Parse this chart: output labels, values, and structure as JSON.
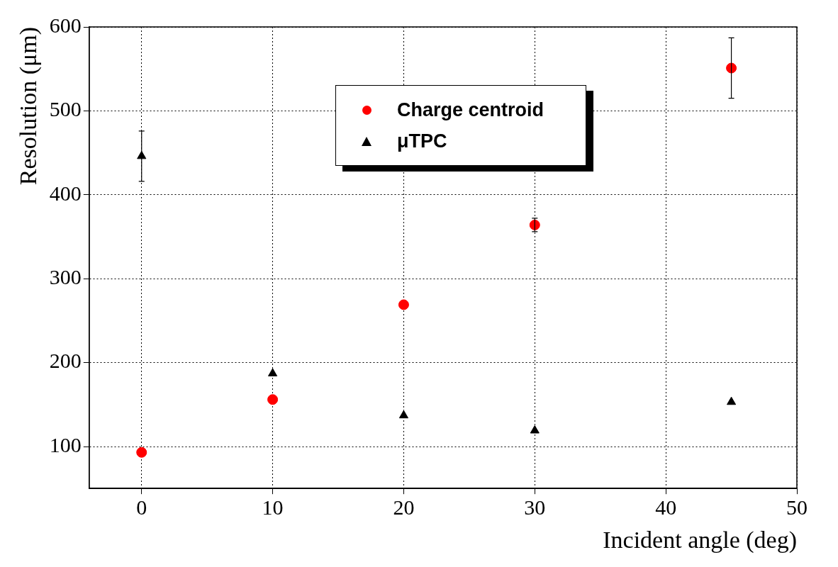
{
  "chart_data": {
    "type": "scatter",
    "xlabel": "Incident angle (deg)",
    "ylabel": "Resolution (μm)",
    "xlim": [
      -4,
      50
    ],
    "xticks": [
      0,
      10,
      20,
      30,
      40,
      50
    ],
    "ylim": [
      50,
      600
    ],
    "yticks": [
      100,
      200,
      300,
      400,
      500,
      600
    ],
    "grid": true,
    "legend": "top",
    "series": [
      {
        "name": "Charge centroid",
        "color": "#ff0000",
        "marker": "circle",
        "x": [
          0,
          10,
          20,
          30,
          45
        ],
        "values": [
          93,
          156,
          269,
          364,
          551
        ],
        "errors": [
          null,
          null,
          null,
          8,
          36
        ]
      },
      {
        "name": "μTPC",
        "color": "#000000",
        "marker": "triangle",
        "x": [
          0,
          10,
          20,
          30,
          45
        ],
        "values": [
          446,
          187,
          137,
          119,
          153
        ],
        "errors": [
          30,
          null,
          null,
          null,
          null
        ]
      }
    ]
  }
}
